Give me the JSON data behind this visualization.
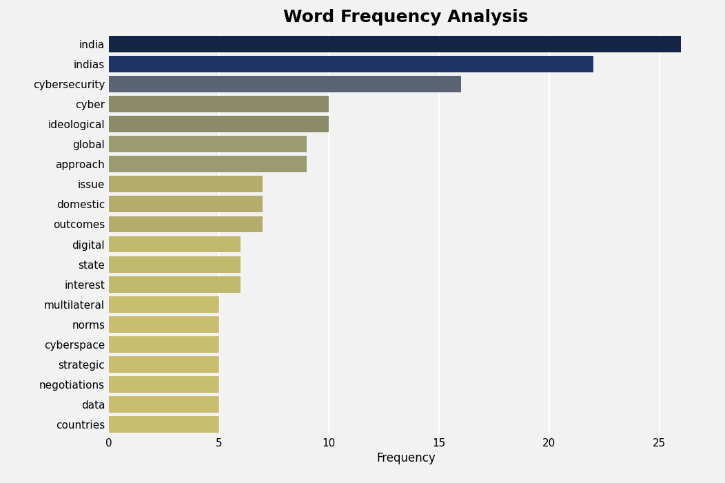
{
  "title": "Word Frequency Analysis",
  "xlabel": "Frequency",
  "categories": [
    "india",
    "indias",
    "cybersecurity",
    "cyber",
    "ideological",
    "global",
    "approach",
    "issue",
    "domestic",
    "outcomes",
    "digital",
    "state",
    "interest",
    "multilateral",
    "norms",
    "cyberspace",
    "strategic",
    "negotiations",
    "data",
    "countries"
  ],
  "values": [
    26,
    22,
    16,
    10,
    10,
    9,
    9,
    7,
    7,
    7,
    6,
    6,
    6,
    5,
    5,
    5,
    5,
    5,
    5,
    5
  ],
  "colors": [
    "#152545",
    "#1e3464",
    "#5a6475",
    "#8b8b6a",
    "#8b8b6a",
    "#9b9b72",
    "#9b9b72",
    "#b5ab6a",
    "#b5ab6a",
    "#b5ab6a",
    "#c0b86c",
    "#c0b86c",
    "#c0b86c",
    "#c8be6e",
    "#c8be6e",
    "#c8be6e",
    "#c8be6e",
    "#c8be6e",
    "#c8be6e",
    "#c8be6e"
  ],
  "background_color": "#f2f2f2",
  "plot_bg_color": "#f2f2f2",
  "title_fontsize": 18,
  "label_fontsize": 11,
  "xlabel_fontsize": 12,
  "xtick_fontsize": 11,
  "xlim": [
    0,
    27
  ],
  "xticks": [
    0,
    5,
    10,
    15,
    20,
    25
  ],
  "bar_height": 0.82,
  "grid_color": "#ffffff",
  "grid_linewidth": 1.5
}
